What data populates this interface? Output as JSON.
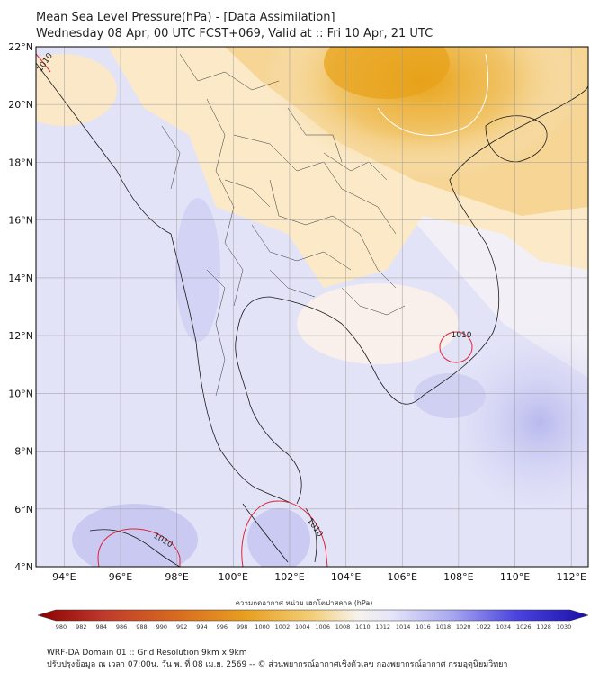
{
  "header": {
    "title": "Mean Sea Level Pressure(hPa) - [Data Assimilation]",
    "subtitle": "Wednesday 08 Apr, 00 UTC FCST+069, Valid at :: Fri 10 Apr, 21 UTC"
  },
  "map": {
    "lat_labels": [
      "22°N",
      "20°N",
      "18°N",
      "16°N",
      "14°N",
      "12°N",
      "10°N",
      "8°N",
      "6°N",
      "4°N"
    ],
    "lon_labels": [
      "94°E",
      "96°E",
      "98°E",
      "100°E",
      "102°E",
      "104°E",
      "106°E",
      "108°E",
      "110°E",
      "112°E"
    ],
    "contour_labels": [
      "1010",
      "1010",
      "1010",
      "1010"
    ],
    "colors": {
      "high_pressure": "#3a2bd6",
      "low_pressure": "#b00000",
      "mid_pressure": "#f4f4f4",
      "warm_band": "#e8a81f",
      "contour_line": "#e0233a"
    }
  },
  "colorbar": {
    "title": "ความกดอากาศ หน่วย เฮกโตปาสคาล (hPa)",
    "ticks": [
      "980",
      "982",
      "984",
      "986",
      "988",
      "990",
      "992",
      "994",
      "996",
      "998",
      "1000",
      "1002",
      "1004",
      "1006",
      "1008",
      "1010",
      "1012",
      "1014",
      "1016",
      "1018",
      "1020",
      "1022",
      "1024",
      "1026",
      "1028",
      "1030"
    ]
  },
  "footer": {
    "line1": "WRF-DA Domain 01 :: Grid Resolution 9km x 9km",
    "line2": "ปรับปรุงข้อมูล ณ เวลา 07:00น. วัน พ. ที่ 08 เม.ย. 2569 -- © ส่วนพยากรณ์อากาศเชิงตัวเลข กองพยากรณ์อากาศ กรมอุตุนิยมวิทยา"
  }
}
